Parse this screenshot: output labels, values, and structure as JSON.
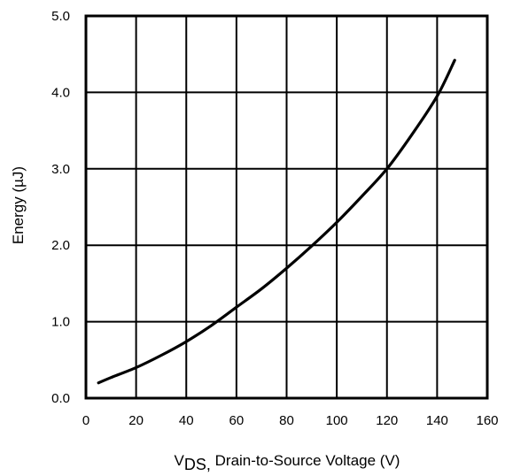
{
  "chart_data": {
    "type": "line",
    "xlabel_main": "V",
    "xlabel_sub": "DS,",
    "xlabel_rest": " Drain-to-Source Voltage (V)",
    "ylabel": "Energy (µJ)",
    "xlim": [
      0,
      160
    ],
    "ylim": [
      0,
      5
    ],
    "xticks": [
      "0",
      "20",
      "40",
      "60",
      "80",
      "100",
      "120",
      "140",
      "160"
    ],
    "yticks": [
      "0.0",
      "1.0",
      "2.0",
      "3.0",
      "4.0",
      "5.0"
    ],
    "grid": true,
    "series": [
      {
        "x": [
          5,
          10,
          20,
          30,
          40,
          50,
          60,
          70,
          80,
          90,
          100,
          110,
          120,
          130,
          140,
          147
        ],
        "values": [
          0.2,
          0.27,
          0.4,
          0.56,
          0.74,
          0.95,
          1.19,
          1.43,
          1.7,
          1.99,
          2.3,
          2.64,
          3.0,
          3.45,
          3.95,
          4.42
        ]
      }
    ]
  }
}
